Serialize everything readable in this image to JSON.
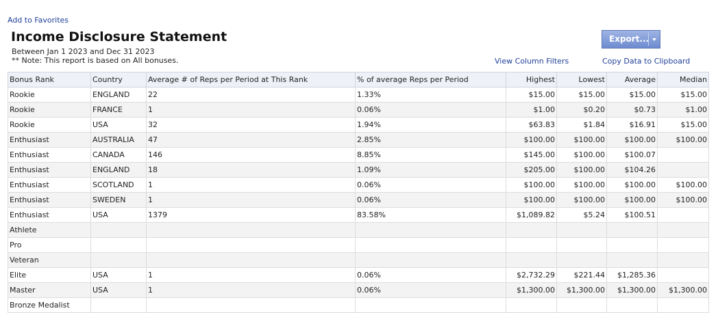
{
  "links": {
    "favorites": "Add to Favorites",
    "filters": "View Column Filters",
    "copy": "Copy Data to Clipboard"
  },
  "header": {
    "title": "Income Disclosure Statement",
    "period": "Between Jan 1 2023 and Dec 31 2023",
    "note": "** Note: This report is based on All bonuses."
  },
  "export_button": "Export...",
  "table": {
    "headers": [
      "Bonus Rank",
      "Country",
      "Average # of Reps per Period at This Rank",
      "% of average Reps per Period",
      "Highest",
      "Lowest",
      "Average",
      "Median"
    ],
    "rows": [
      [
        "Rookie",
        "ENGLAND",
        "22",
        "1.33%",
        "$15.00",
        "$15.00",
        "$15.00",
        "$15.00"
      ],
      [
        "Rookie",
        "FRANCE",
        "1",
        "0.06%",
        "$1.00",
        "$0.20",
        "$0.73",
        "$1.00"
      ],
      [
        "Rookie",
        "USA",
        "32",
        "1.94%",
        "$63.83",
        "$1.84",
        "$16.91",
        "$15.00"
      ],
      [
        "Enthusiast",
        "AUSTRALIA",
        "47",
        "2.85%",
        "$100.00",
        "$100.00",
        "$100.00",
        "$100.00"
      ],
      [
        "Enthusiast",
        "CANADA",
        "146",
        "8.85%",
        "$145.00",
        "$100.00",
        "$100.07",
        null
      ],
      [
        "Enthusiast",
        "ENGLAND",
        "18",
        "1.09%",
        "$205.00",
        "$100.00",
        "$104.26",
        null
      ],
      [
        "Enthusiast",
        "SCOTLAND",
        "1",
        "0.06%",
        "$100.00",
        "$100.00",
        "$100.00",
        "$100.00"
      ],
      [
        "Enthusiast",
        "SWEDEN",
        "1",
        "0.06%",
        "$100.00",
        "$100.00",
        "$100.00",
        "$100.00"
      ],
      [
        "Enthusiast",
        "USA",
        "1379",
        "83.58%",
        "$1,089.82",
        "$5.24",
        "$100.51",
        null
      ],
      [
        "Athlete",
        null,
        null,
        null,
        null,
        null,
        null,
        null
      ],
      [
        "Pro",
        null,
        null,
        null,
        null,
        null,
        null,
        null
      ],
      [
        "Veteran",
        null,
        null,
        null,
        null,
        null,
        null,
        null
      ],
      [
        "Elite",
        "USA",
        "1",
        "0.06%",
        "$2,732.29",
        "$221.44",
        "$1,285.36",
        null
      ],
      [
        "Master",
        "USA",
        "1",
        "0.06%",
        "$1,300.00",
        "$1,300.00",
        "$1,300.00",
        "$1,300.00"
      ],
      [
        "Bronze Medalist",
        null,
        null,
        null,
        null,
        null,
        null,
        null
      ]
    ]
  }
}
